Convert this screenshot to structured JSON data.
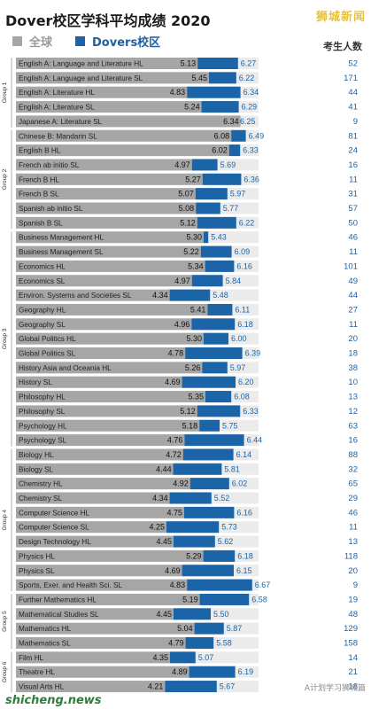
{
  "header": {
    "title": "Dover校区学科平均成绩  2020",
    "watermark": "狮城新闻",
    "count_header": "考生人数"
  },
  "footer": {
    "site": "shicheng.news",
    "account": "A计划学习狮城篇"
  },
  "colors": {
    "global": "#a6a6a6",
    "dover": "#1b64a8",
    "count_text": "#1f5f9f",
    "label_bg": "#ebebeb"
  },
  "chart_data": {
    "type": "bar",
    "orientation": "horizontal",
    "legend": [
      "全球",
      "Dovers校区"
    ],
    "legend_position": "top-left",
    "xlim": [
      0,
      7
    ],
    "grid": false,
    "series_names": [
      "全球",
      "Dovers校区",
      "考生人数"
    ],
    "groups": [
      {
        "label": "Group 1",
        "subjects": [
          {
            "name": "English A: Language and Literature HL",
            "global": 5.13,
            "dover": 6.27,
            "count": 52
          },
          {
            "name": "English A: Language and Literature SL",
            "global": 5.45,
            "dover": 6.22,
            "count": 171
          },
          {
            "name": "English A: Literature HL",
            "global": 4.83,
            "dover": 6.34,
            "count": 44
          },
          {
            "name": "English A: Literature SL",
            "global": 5.24,
            "dover": 6.29,
            "count": 41
          },
          {
            "name": "Japanese A: Literature SL",
            "global": 6.34,
            "dover": 6.25,
            "count": 9
          }
        ]
      },
      {
        "label": "Group 2",
        "subjects": [
          {
            "name": "Chinese B: Mandarin SL",
            "global": 6.08,
            "dover": 6.49,
            "count": 81
          },
          {
            "name": "English B HL",
            "global": 6.02,
            "dover": 6.33,
            "count": 24
          },
          {
            "name": "French ab initio SL",
            "global": 4.97,
            "dover": 5.69,
            "count": 16
          },
          {
            "name": "French B HL",
            "global": 5.27,
            "dover": 6.36,
            "count": 11
          },
          {
            "name": "French B SL",
            "global": 5.07,
            "dover": 5.97,
            "count": 31
          },
          {
            "name": "Spanish ab initio SL",
            "global": 5.08,
            "dover": 5.77,
            "count": 57
          },
          {
            "name": "Spanish B SL",
            "global": 5.12,
            "dover": 6.22,
            "count": 50
          }
        ]
      },
      {
        "label": "Group 3",
        "subjects": [
          {
            "name": "Business Management HL",
            "global": 5.3,
            "dover": 5.43,
            "count": 46
          },
          {
            "name": "Business Management SL",
            "global": 5.22,
            "dover": 6.09,
            "count": 11
          },
          {
            "name": "Economics HL",
            "global": 5.34,
            "dover": 6.16,
            "count": 101
          },
          {
            "name": "Economics SL",
            "global": 4.97,
            "dover": 5.84,
            "count": 49
          },
          {
            "name": "Environ. Systems and Societies SL",
            "global": 4.34,
            "dover": 5.48,
            "count": 44
          },
          {
            "name": "Geography HL",
            "global": 5.41,
            "dover": 6.11,
            "count": 27
          },
          {
            "name": "Geography SL",
            "global": 4.96,
            "dover": 6.18,
            "count": 11
          },
          {
            "name": "Global Politics HL",
            "global": 5.3,
            "dover": 6.0,
            "count": 20
          },
          {
            "name": "Global Politics SL",
            "global": 4.78,
            "dover": 6.39,
            "count": 18
          },
          {
            "name": "History Asia and Oceania HL",
            "global": 5.26,
            "dover": 5.97,
            "count": 38
          },
          {
            "name": "History SL",
            "global": 4.69,
            "dover": 6.2,
            "count": 10
          },
          {
            "name": "Philosophy HL",
            "global": 5.35,
            "dover": 6.08,
            "count": 13
          },
          {
            "name": "Philosophy SL",
            "global": 5.12,
            "dover": 6.33,
            "count": 12
          },
          {
            "name": "Psychology HL",
            "global": 5.18,
            "dover": 5.75,
            "count": 63
          },
          {
            "name": "Psychology SL",
            "global": 4.76,
            "dover": 6.44,
            "count": 16
          }
        ]
      },
      {
        "label": "Group 4",
        "subjects": [
          {
            "name": "Biology HL",
            "global": 4.72,
            "dover": 6.14,
            "count": 88
          },
          {
            "name": "Biology SL",
            "global": 4.44,
            "dover": 5.81,
            "count": 32
          },
          {
            "name": "Chemistry HL",
            "global": 4.92,
            "dover": 6.02,
            "count": 65
          },
          {
            "name": "Chemistry SL",
            "global": 4.34,
            "dover": 5.52,
            "count": 29
          },
          {
            "name": "Computer Science HL",
            "global": 4.75,
            "dover": 6.16,
            "count": 46
          },
          {
            "name": "Computer Science SL",
            "global": 4.25,
            "dover": 5.73,
            "count": 11
          },
          {
            "name": "Design Technology HL",
            "global": 4.45,
            "dover": 5.62,
            "count": 13
          },
          {
            "name": "Physics HL",
            "global": 5.29,
            "dover": 6.18,
            "count": 118
          },
          {
            "name": "Physics SL",
            "global": 4.69,
            "dover": 6.15,
            "count": 20
          },
          {
            "name": "Sports, Exer. and Health Sci. SL",
            "global": 4.83,
            "dover": 6.67,
            "count": 9
          }
        ]
      },
      {
        "label": "Group 5",
        "subjects": [
          {
            "name": "Further Mathematics HL",
            "global": 5.19,
            "dover": 6.58,
            "count": 19
          },
          {
            "name": "Mathematical Studies SL",
            "global": 4.45,
            "dover": 5.5,
            "count": 48
          },
          {
            "name": "Mathematics HL",
            "global": 5.04,
            "dover": 5.87,
            "count": 129
          },
          {
            "name": "Mathematics SL",
            "global": 4.79,
            "dover": 5.58,
            "count": 158
          }
        ]
      },
      {
        "label": "Group 6",
        "subjects": [
          {
            "name": "Film HL",
            "global": 4.35,
            "dover": 5.07,
            "count": 14
          },
          {
            "name": "Theatre HL",
            "global": 4.89,
            "dover": 6.19,
            "count": 21
          },
          {
            "name": "Visual Arts HL",
            "global": 4.21,
            "dover": 5.67,
            "count": 18
          }
        ]
      }
    ]
  }
}
